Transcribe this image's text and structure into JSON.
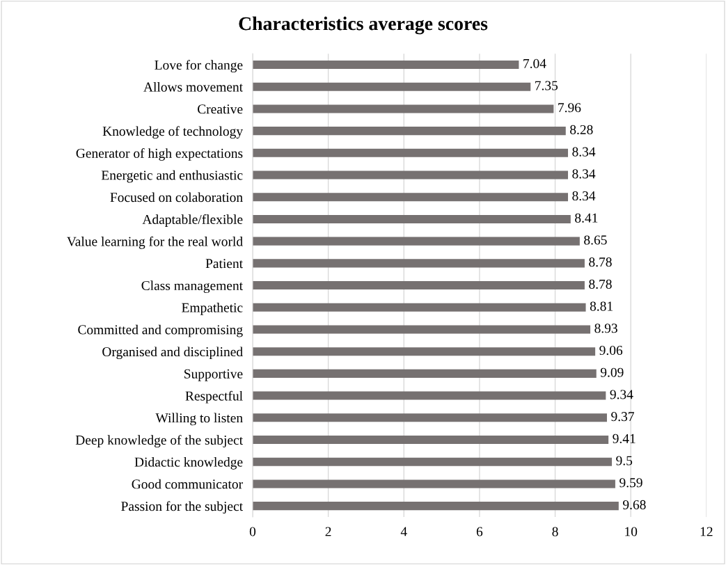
{
  "chart_data": {
    "type": "bar",
    "orientation": "horizontal",
    "title": "Characteristics average scores",
    "categories": [
      "Love for change",
      "Allows movement",
      "Creative",
      "Knowledge of technology",
      "Generator of high expectations",
      "Energetic and enthusiastic",
      "Focused on colaboration",
      "Adaptable/flexible",
      "Value learning for the real world",
      "Patient",
      "Class management",
      "Empathetic",
      "Committed and compromising",
      "Organised and disciplined",
      "Supportive",
      "Respectful",
      "Willing to listen",
      "Deep knowledge of the subject",
      "Didactic knowledge",
      "Good communicator",
      "Passion for the subject"
    ],
    "values": [
      7.04,
      7.35,
      7.96,
      8.28,
      8.34,
      8.34,
      8.34,
      8.41,
      8.65,
      8.78,
      8.78,
      8.81,
      8.93,
      9.06,
      9.09,
      9.34,
      9.37,
      9.41,
      9.5,
      9.59,
      9.68
    ],
    "color": "#767171",
    "xlim": [
      0,
      12
    ],
    "xticks": [
      0,
      2,
      4,
      6,
      8,
      10,
      12
    ],
    "grid": "x",
    "data_labels": true,
    "legend": false
  }
}
